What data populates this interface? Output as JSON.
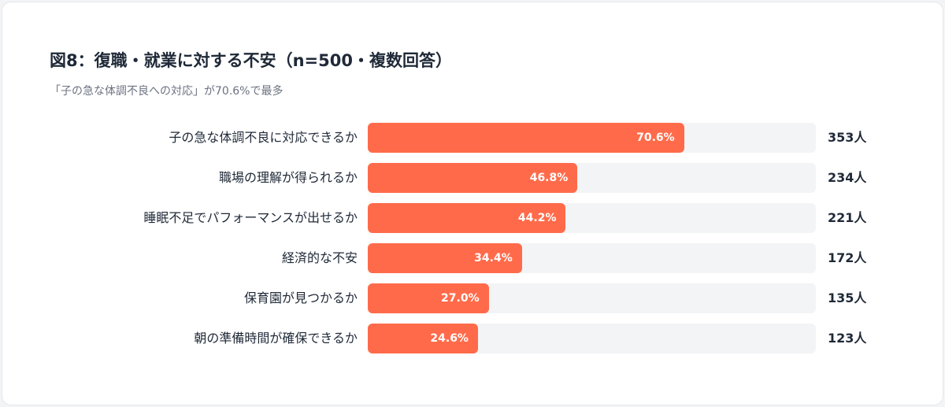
{
  "chart_data": {
    "type": "bar",
    "orientation": "horizontal",
    "title": "図8：復職・就業に対する不安（n=500・複数回答）",
    "subtitle": "「子の急な体調不良への対応」が70.6%で最多",
    "categories": [
      "子の急な体調不良に対応できるか",
      "職場の理解が得られるか",
      "睡眠不足でパフォーマンスが出せるか",
      "経済的な不安",
      "保育園が見つかるか",
      "朝の準備時間が確保できるか"
    ],
    "values": [
      70.6,
      46.8,
      44.2,
      34.4,
      27.0,
      24.6
    ],
    "value_labels": [
      "70.6%",
      "46.8%",
      "44.2%",
      "34.4%",
      "27.0%",
      "24.6%"
    ],
    "counts": [
      "353人",
      "234人",
      "221人",
      "172人",
      "135人",
      "123人"
    ],
    "xlim": [
      0,
      100
    ],
    "grid": false,
    "colors": {
      "bar": "#ff6b4a",
      "track": "#f3f4f6"
    }
  }
}
